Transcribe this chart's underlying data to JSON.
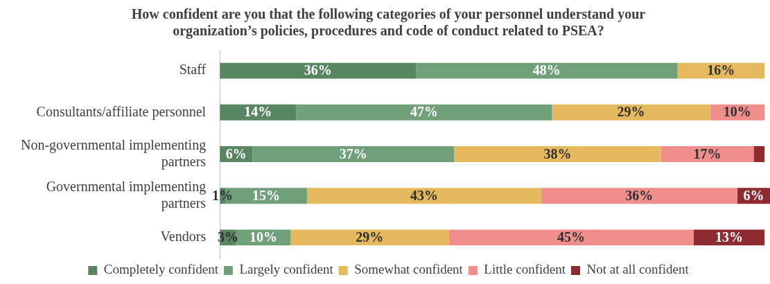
{
  "chart_data": {
    "type": "bar",
    "orientation": "horizontal",
    "stacked": true,
    "title": "How confident are you that the following categories of your personnel understand your organization’s policies, procedures and code of conduct related to PSEA?",
    "categories": [
      "Staff",
      "Consultants/affiliate personnel",
      "Non-governmental implementing partners",
      "Governmental implementing partners",
      "Vendors"
    ],
    "series": [
      {
        "name": "Completely confident",
        "color": "#588660",
        "values": [
          36,
          14,
          6,
          1,
          3
        ],
        "value_labels": [
          "36%",
          "14%",
          "6%",
          "1%",
          "3%"
        ]
      },
      {
        "name": "Largely confident",
        "color": "#6fa07a",
        "values": [
          48,
          47,
          37,
          15,
          10
        ],
        "value_labels": [
          "48%",
          "47%",
          "37%",
          "15%",
          "10%"
        ]
      },
      {
        "name": "Somewhat confident",
        "color": "#e5b95e",
        "values": [
          16,
          29,
          38,
          43,
          29
        ],
        "value_labels": [
          "16%",
          "29%",
          "38%",
          "43%",
          "29%"
        ]
      },
      {
        "name": "Little confident",
        "color": "#f08e8b",
        "values": [
          null,
          10,
          17,
          36,
          45
        ],
        "value_labels": [
          null,
          "10%",
          "17%",
          "36%",
          "45%"
        ]
      },
      {
        "name": "Not at all confident",
        "color": "#8e2b31",
        "values": [
          null,
          null,
          2,
          6,
          13
        ],
        "value_labels": [
          null,
          null,
          null,
          "6%",
          "13%"
        ]
      }
    ],
    "xlim": [
      0,
      101
    ],
    "tick_labels": "y",
    "legend": "bottom"
  }
}
